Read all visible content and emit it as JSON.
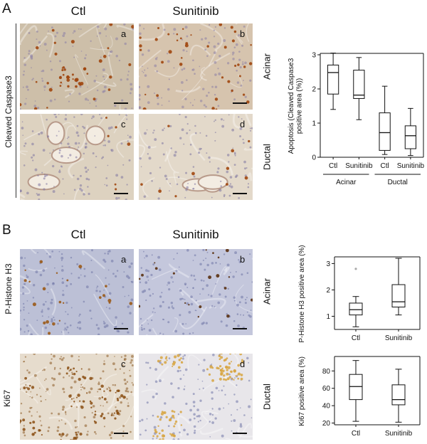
{
  "panel_A": {
    "letter": "A",
    "col_ctl": "Ctl",
    "col_sun": "Sunitinib",
    "row_label": "Cleaved Caspase3",
    "row_acinar": "Acinar",
    "row_ductal": "Ductal",
    "sub": [
      "a",
      "b",
      "c",
      "d"
    ],
    "colors": {
      "acinar_bg": "#cdbfa9",
      "ductal_bg": "#ddd2c0",
      "stain": "#a0460e"
    }
  },
  "panel_B": {
    "letter": "B",
    "col_ctl": "Ctl",
    "col_sun": "Sunitinib",
    "row1_label": "P-Histone H3",
    "row2_label": "Ki67",
    "row_acinar": "Acinar",
    "row_ductal": "Ductal",
    "sub": [
      "a",
      "b",
      "c",
      "d"
    ],
    "colors": {
      "ph3_bg": "#bcc0d6",
      "ki67_bg": "#e6dccd",
      "stain": "#9a5a18",
      "ki67_sun": "#d7a441"
    }
  },
  "chart_data": [
    {
      "type": "box",
      "ylabel": "Apoptosis (Cleaved Caspase3 positive area (%))",
      "ylim": [
        0,
        3
      ],
      "yticks": [
        "0",
        "1",
        "2",
        "3"
      ],
      "categories": [
        "Ctl",
        "Sunitinib",
        "Ctl",
        "Sunitinib"
      ],
      "groups": [
        "Acinar",
        "Ductal"
      ],
      "boxes": [
        {
          "min": 1.4,
          "q1": 1.85,
          "median": 2.48,
          "q3": 2.7,
          "max": 3.05
        },
        {
          "min": 1.1,
          "q1": 1.72,
          "median": 1.82,
          "q3": 2.55,
          "max": 2.92
        },
        {
          "min": 0.08,
          "q1": 0.2,
          "median": 0.72,
          "q3": 1.3,
          "max": 2.08
        },
        {
          "min": 0.05,
          "q1": 0.25,
          "median": 0.63,
          "q3": 0.92,
          "max": 1.43
        }
      ]
    },
    {
      "type": "box",
      "ylabel": "P-Histone H3 positive area (%)",
      "ylim": [
        0.5,
        3.2
      ],
      "yticks": [
        "1",
        "2",
        "3"
      ],
      "categories": [
        "Ctl",
        "Sunitinib"
      ],
      "boxes": [
        {
          "min": 0.6,
          "q1": 1.05,
          "median": 1.25,
          "q3": 1.5,
          "max": 1.75,
          "outliers": [
            2.8
          ]
        },
        {
          "min": 1.05,
          "q1": 1.35,
          "median": 1.55,
          "q3": 2.2,
          "max": 3.2
        }
      ]
    },
    {
      "type": "box",
      "ylabel": "Ki67 positive area (%)",
      "ylim": [
        18,
        95
      ],
      "yticks": [
        "20",
        "40",
        "60",
        "80"
      ],
      "categories": [
        "Ctl",
        "Sunitinib"
      ],
      "boxes": [
        {
          "min": 22,
          "q1": 47,
          "median": 62,
          "q3": 76,
          "max": 92
        },
        {
          "min": 21,
          "q1": 41,
          "median": 47,
          "q3": 64,
          "max": 82
        }
      ]
    }
  ]
}
